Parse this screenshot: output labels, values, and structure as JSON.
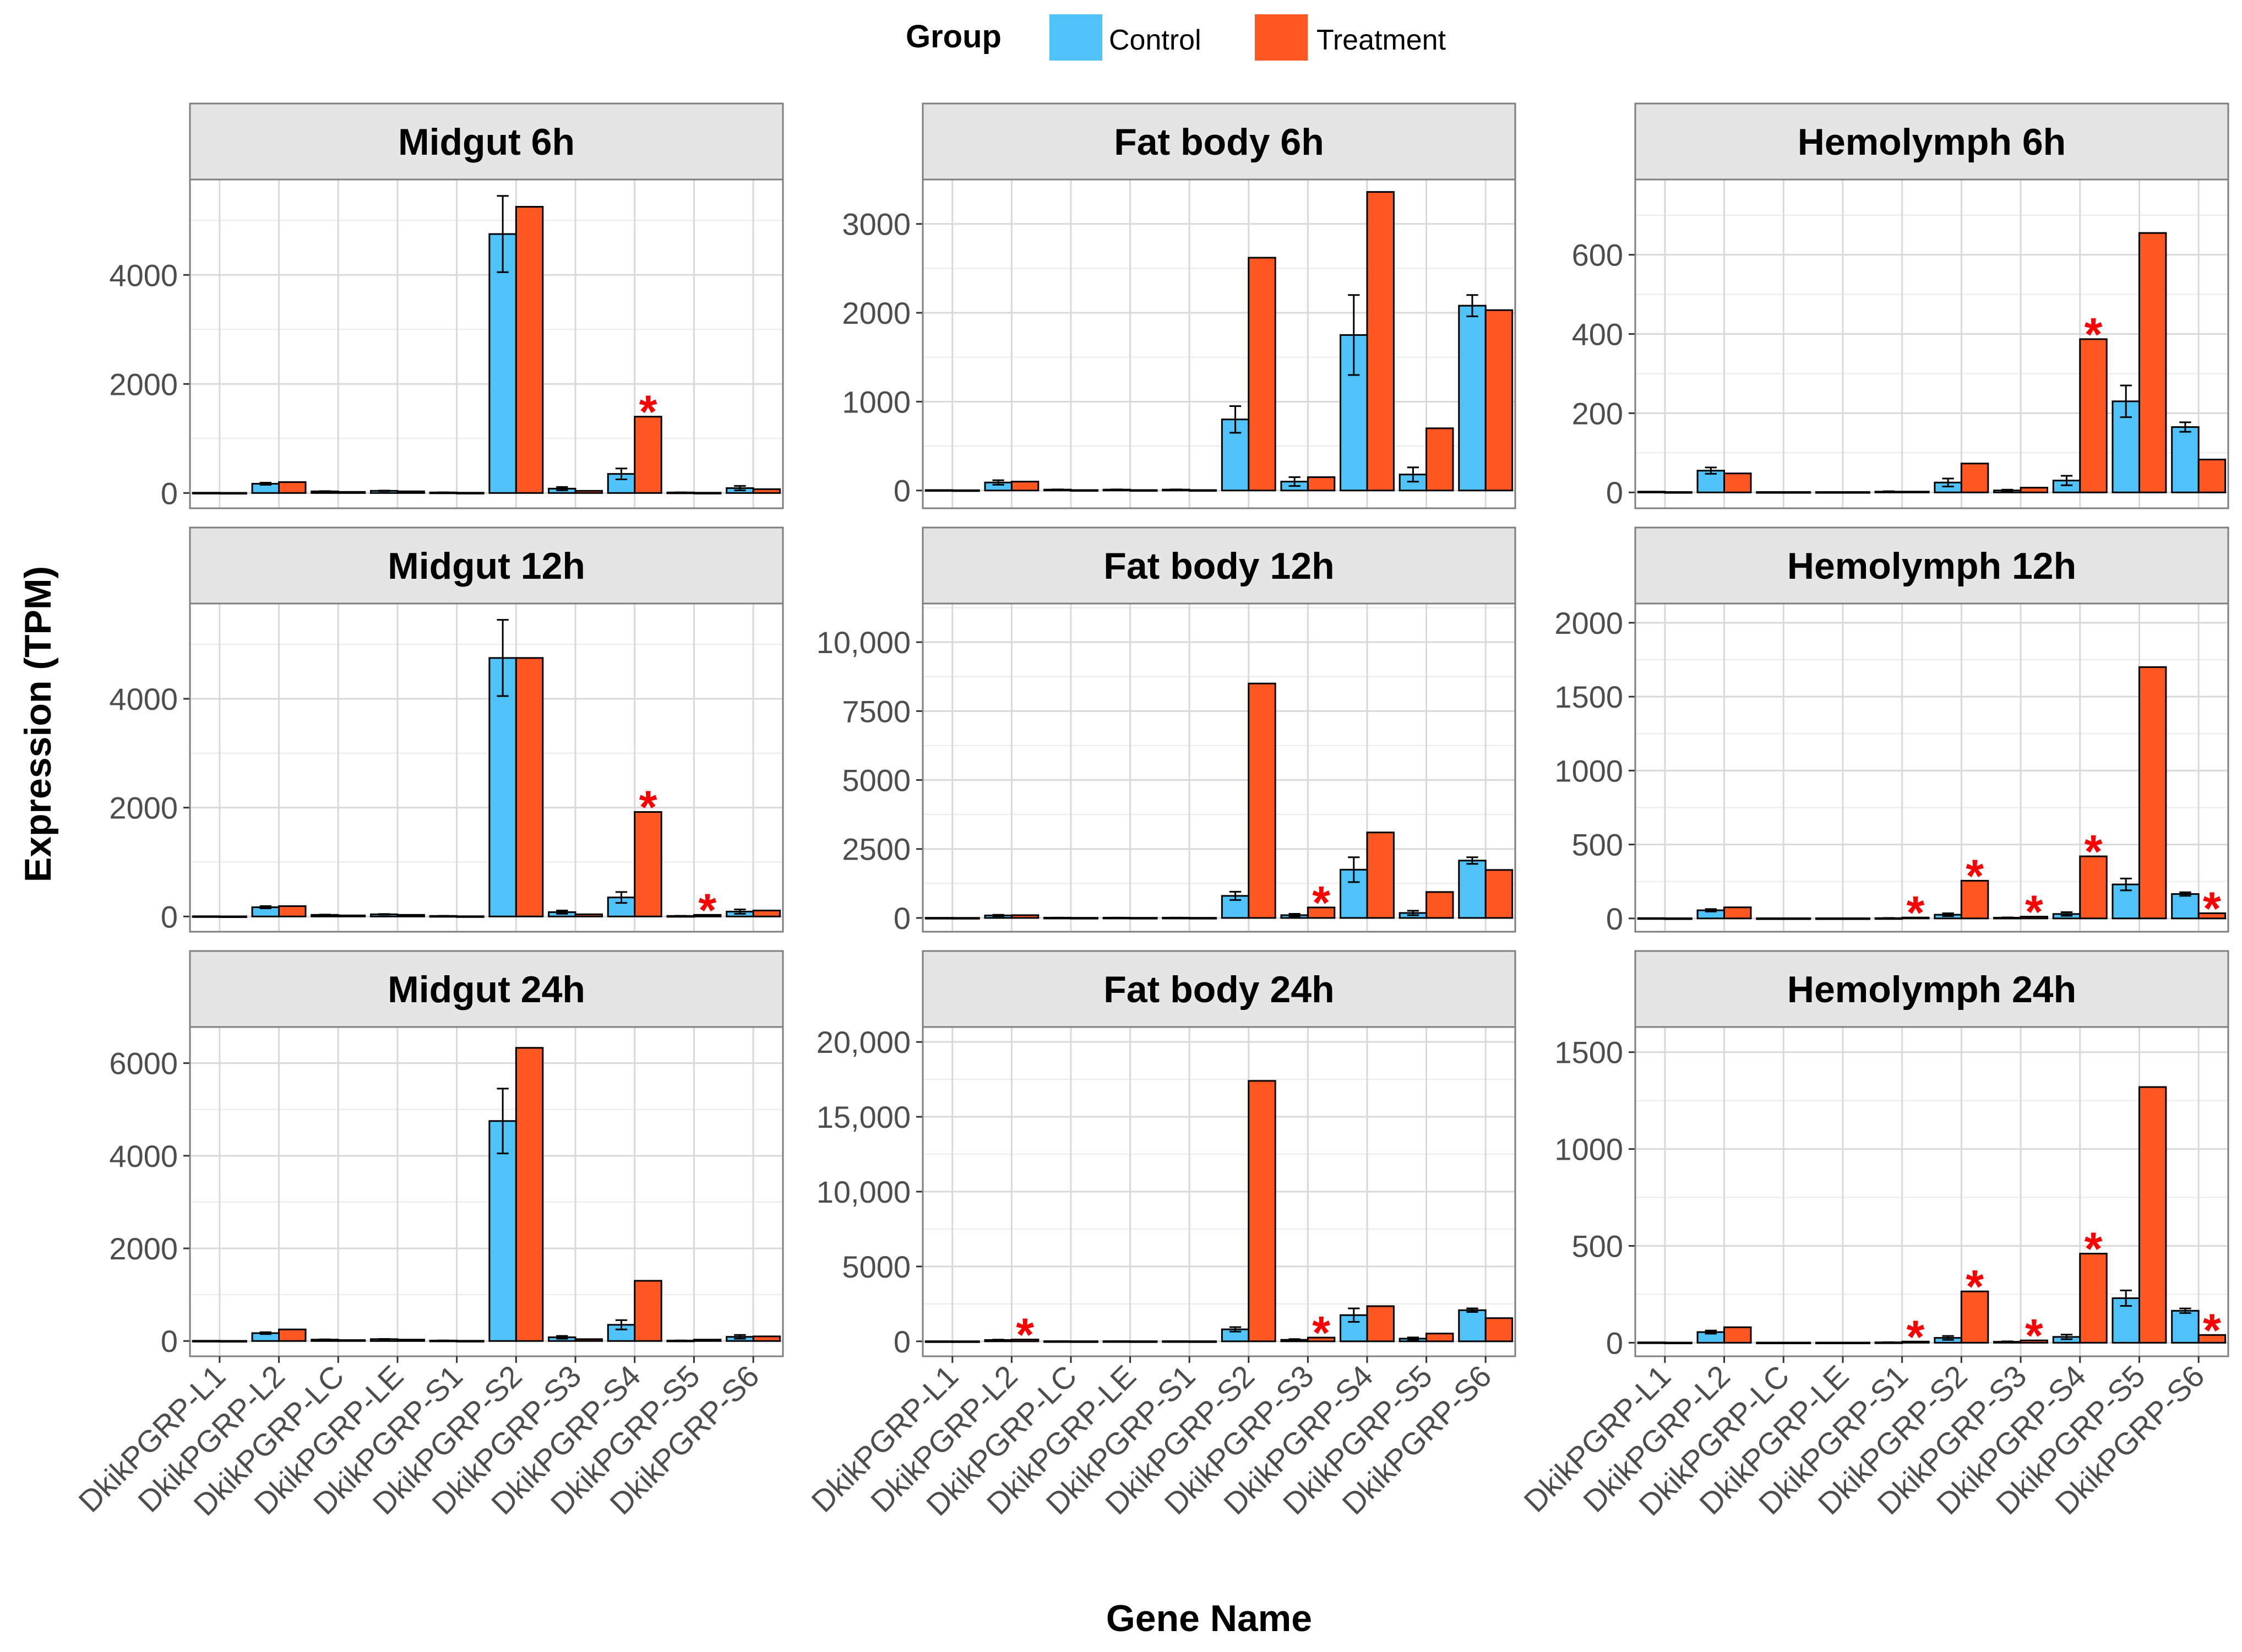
{
  "chart_data": {
    "type": "bar",
    "layout": "facet-grid",
    "ylabel": "Expression (TPM)",
    "xlabel": "Gene Name",
    "legend": {
      "title": "Group",
      "position": "top",
      "entries": [
        {
          "name": "Control",
          "color": "#4FC3F7"
        },
        {
          "name": "Treatment",
          "color": "#FF5722"
        }
      ]
    },
    "significance_symbol": "*",
    "significance_color": "#FF0000",
    "categories": [
      "DkikPGRP-L1",
      "DkikPGRP-L2",
      "DkikPGRP-LC",
      "DkikPGRP-LE",
      "DkikPGRP-S1",
      "DkikPGRP-S2",
      "DkikPGRP-S3",
      "DkikPGRP-S4",
      "DkikPGRP-S5",
      "DkikPGRP-S6"
    ],
    "panels": [
      {
        "title": "Midgut 6h",
        "ylim": [
          -280,
          5750
        ],
        "ticks": [
          0,
          2000,
          4000
        ],
        "tick_labels": [
          "0",
          "2000",
          "4000"
        ],
        "control": [
          5,
          170,
          30,
          40,
          10,
          4750,
          80,
          350,
          10,
          90
        ],
        "control_err": [
          0,
          20,
          5,
          5,
          2,
          700,
          30,
          100,
          2,
          40
        ],
        "treatment": [
          3,
          200,
          20,
          30,
          5,
          5250,
          40,
          1400,
          5,
          70
        ],
        "sig": [
          7
        ]
      },
      {
        "title": "Fat body 6h",
        "ylim": [
          -200,
          3500
        ],
        "ticks": [
          0,
          1000,
          2000,
          3000
        ],
        "tick_labels": [
          "0",
          "1000",
          "2000",
          "3000"
        ],
        "control": [
          5,
          90,
          10,
          10,
          10,
          800,
          100,
          1750,
          180,
          2080
        ],
        "control_err": [
          0,
          25,
          2,
          2,
          2,
          150,
          50,
          450,
          80,
          120
        ],
        "treatment": [
          3,
          100,
          5,
          5,
          5,
          2620,
          150,
          3360,
          700,
          2030
        ],
        "sig": []
      },
      {
        "title": "Hemolymph 6h",
        "ylim": [
          -40,
          790
        ],
        "ticks": [
          0,
          200,
          400,
          600
        ],
        "tick_labels": [
          "0",
          "200",
          "400",
          "600"
        ],
        "control": [
          2,
          55,
          1,
          1,
          2,
          25,
          5,
          30,
          230,
          165
        ],
        "control_err": [
          0,
          8,
          0,
          0,
          1,
          10,
          2,
          12,
          40,
          12
        ],
        "treatment": [
          1,
          48,
          1,
          1,
          2,
          73,
          12,
          387,
          655,
          83
        ],
        "sig": [
          7
        ]
      },
      {
        "title": "Midgut 12h",
        "ylim": [
          -280,
          5750
        ],
        "ticks": [
          0,
          2000,
          4000
        ],
        "tick_labels": [
          "0",
          "2000",
          "4000"
        ],
        "control": [
          5,
          170,
          30,
          40,
          10,
          4750,
          80,
          350,
          10,
          90
        ],
        "control_err": [
          0,
          20,
          5,
          5,
          2,
          700,
          30,
          100,
          2,
          40
        ],
        "treatment": [
          3,
          190,
          20,
          30,
          5,
          4750,
          40,
          1920,
          30,
          110
        ],
        "sig": [
          7,
          8
        ]
      },
      {
        "title": "Fat body 12h",
        "ylim": [
          -500,
          11400
        ],
        "ticks": [
          0,
          2500,
          5000,
          7500,
          10000
        ],
        "tick_labels": [
          "0",
          "2500",
          "5000",
          "7500",
          "10,000"
        ],
        "control": [
          5,
          90,
          10,
          10,
          10,
          800,
          100,
          1750,
          180,
          2080
        ],
        "control_err": [
          0,
          25,
          2,
          2,
          2,
          150,
          50,
          450,
          80,
          120
        ],
        "treatment": [
          3,
          100,
          5,
          5,
          5,
          8500,
          380,
          3100,
          940,
          1740
        ],
        "sig": [
          6
        ]
      },
      {
        "title": "Hemolymph 12h",
        "ylim": [
          -90,
          2130
        ],
        "ticks": [
          0,
          500,
          1000,
          1500,
          2000
        ],
        "tick_labels": [
          "0",
          "500",
          "1000",
          "1500",
          "2000"
        ],
        "control": [
          2,
          55,
          1,
          1,
          2,
          25,
          5,
          30,
          230,
          165
        ],
        "control_err": [
          0,
          8,
          0,
          0,
          1,
          10,
          2,
          12,
          40,
          12
        ],
        "treatment": [
          1,
          75,
          1,
          1,
          6,
          255,
          12,
          420,
          1700,
          35
        ],
        "sig": [
          4,
          5,
          6,
          7,
          9
        ]
      },
      {
        "title": "Midgut 24h",
        "ylim": [
          -330,
          6780
        ],
        "ticks": [
          0,
          2000,
          4000,
          6000
        ],
        "tick_labels": [
          "0",
          "2000",
          "4000",
          "6000"
        ],
        "control": [
          5,
          170,
          30,
          40,
          10,
          4750,
          80,
          350,
          10,
          90
        ],
        "control_err": [
          0,
          20,
          5,
          5,
          2,
          700,
          30,
          100,
          2,
          40
        ],
        "treatment": [
          3,
          250,
          20,
          30,
          5,
          6330,
          40,
          1300,
          30,
          100
        ],
        "sig": []
      },
      {
        "title": "Fat body 24h",
        "ylim": [
          -1000,
          21000
        ],
        "ticks": [
          0,
          5000,
          10000,
          15000,
          20000
        ],
        "tick_labels": [
          "0",
          "5000",
          "10,000",
          "15,000",
          "20,000"
        ],
        "control": [
          5,
          90,
          10,
          10,
          10,
          800,
          100,
          1750,
          180,
          2080
        ],
        "control_err": [
          0,
          25,
          2,
          2,
          2,
          150,
          50,
          450,
          80,
          120
        ],
        "treatment": [
          3,
          120,
          5,
          5,
          5,
          17400,
          250,
          2350,
          520,
          1550
        ],
        "sig": [
          1,
          6
        ]
      },
      {
        "title": "Hemolymph 24h",
        "ylim": [
          -70,
          1630
        ],
        "ticks": [
          0,
          500,
          1000,
          1500
        ],
        "tick_labels": [
          "0",
          "500",
          "1000",
          "1500"
        ],
        "control": [
          2,
          55,
          1,
          1,
          2,
          25,
          5,
          30,
          230,
          165
        ],
        "control_err": [
          0,
          8,
          0,
          0,
          1,
          10,
          2,
          12,
          40,
          12
        ],
        "treatment": [
          1,
          80,
          1,
          1,
          6,
          265,
          12,
          460,
          1320,
          40
        ],
        "sig": [
          4,
          5,
          6,
          7,
          9
        ]
      }
    ]
  }
}
